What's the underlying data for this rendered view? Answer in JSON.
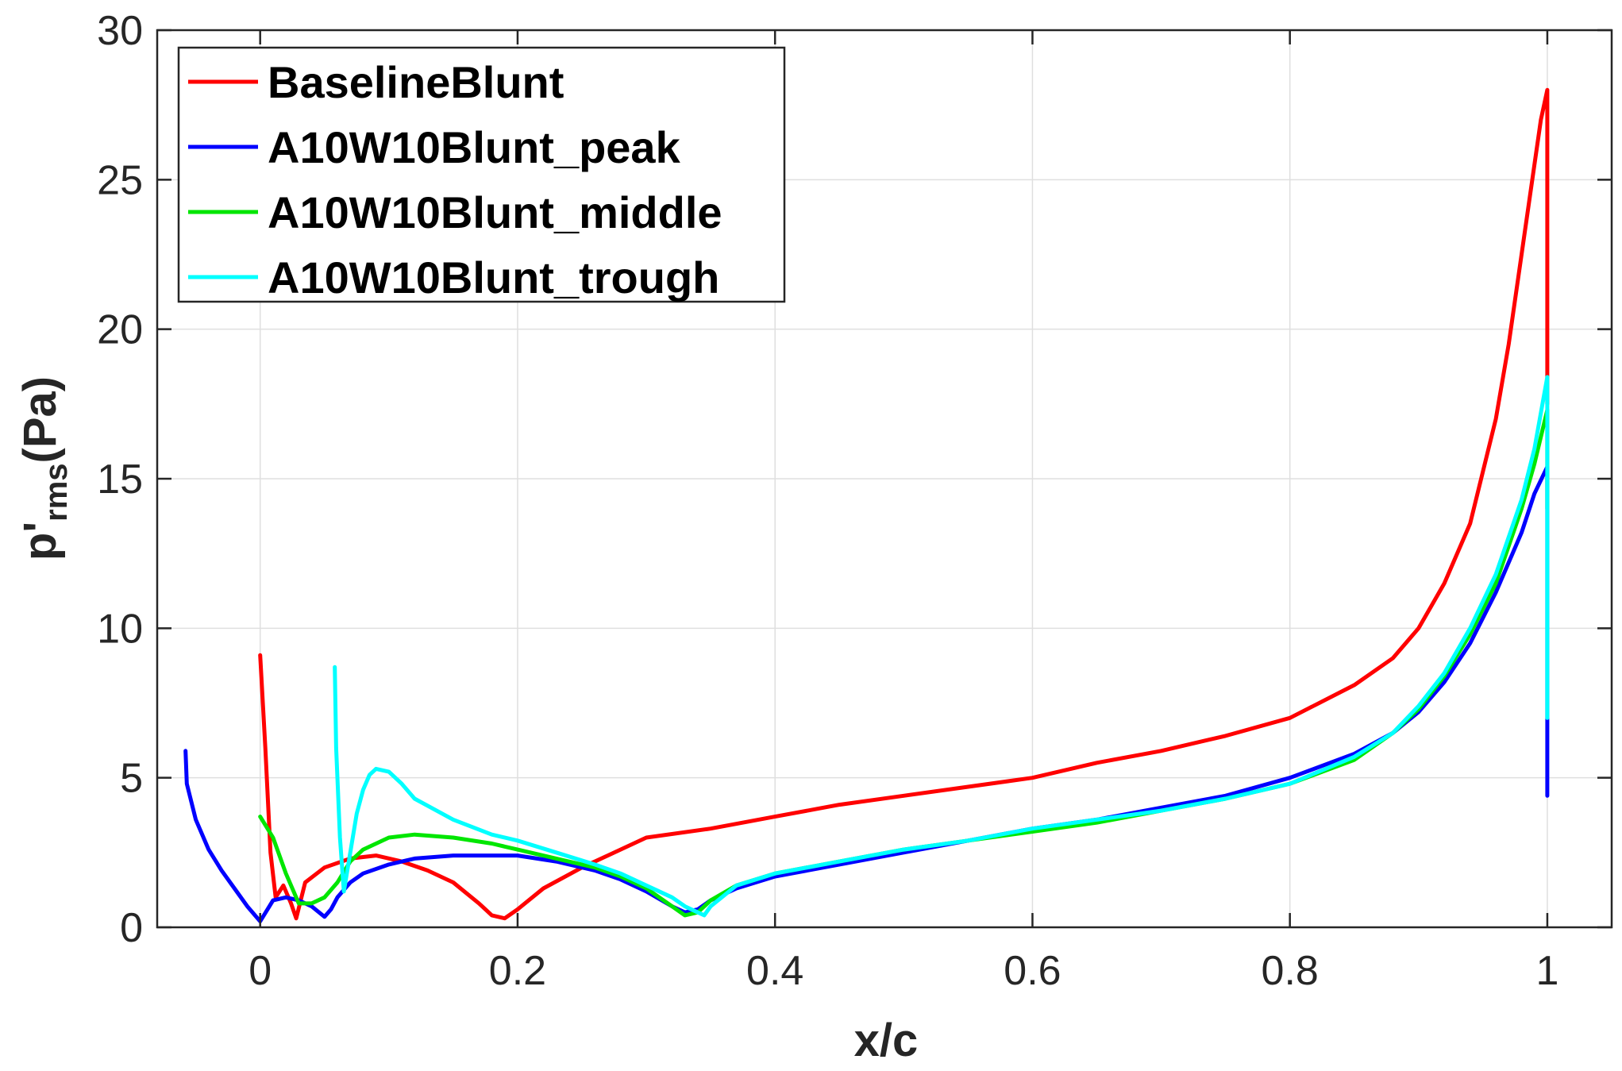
{
  "chart_data": {
    "type": "line",
    "title": "",
    "xlabel": "x/c",
    "ylabel": {
      "base": "p'",
      "subscript": "rms",
      "suffix": "(Pa)"
    },
    "xlim": [
      -0.08,
      1.05
    ],
    "ylim": [
      0,
      30
    ],
    "xticks": [
      0,
      0.2,
      0.4,
      0.6,
      0.8,
      1
    ],
    "xtick_labels": [
      "0",
      "0.2",
      "0.4",
      "0.6",
      "0.8",
      "1"
    ],
    "yticks": [
      0,
      5,
      10,
      15,
      20,
      25,
      30
    ],
    "ytick_labels": [
      "0",
      "5",
      "10",
      "15",
      "20",
      "25",
      "30"
    ],
    "grid": true,
    "legend_position": "top-left",
    "series": [
      {
        "name": "BaselineBlunt",
        "color": "#ff0000",
        "x": [
          0,
          0.004,
          0.008,
          0.012,
          0.018,
          0.024,
          0.028,
          0.035,
          0.05,
          0.07,
          0.09,
          0.11,
          0.13,
          0.15,
          0.17,
          0.18,
          0.19,
          0.2,
          0.22,
          0.25,
          0.28,
          0.3,
          0.35,
          0.4,
          0.45,
          0.5,
          0.55,
          0.6,
          0.65,
          0.7,
          0.75,
          0.8,
          0.85,
          0.88,
          0.9,
          0.92,
          0.94,
          0.96,
          0.97,
          0.98,
          0.99,
          0.995,
          1.0,
          1.0,
          1.0
        ],
        "y": [
          9.1,
          6.0,
          2.5,
          1.0,
          1.4,
          0.8,
          0.3,
          1.5,
          2.0,
          2.3,
          2.4,
          2.2,
          1.9,
          1.5,
          0.8,
          0.4,
          0.3,
          0.6,
          1.3,
          2.0,
          2.6,
          3.0,
          3.3,
          3.7,
          4.1,
          4.4,
          4.7,
          5.0,
          5.5,
          5.9,
          6.4,
          7.0,
          8.1,
          9.0,
          10.0,
          11.5,
          13.5,
          17.0,
          19.5,
          22.5,
          25.5,
          27.0,
          28.0,
          18.0,
          17.5
        ]
      },
      {
        "name": "A10W10Blunt_peak",
        "color": "#0000ff",
        "x": [
          -0.058,
          -0.057,
          -0.05,
          -0.04,
          -0.03,
          -0.02,
          -0.01,
          0.0,
          0.01,
          0.02,
          0.03,
          0.04,
          0.05,
          0.055,
          0.06,
          0.07,
          0.08,
          0.1,
          0.12,
          0.15,
          0.18,
          0.2,
          0.23,
          0.26,
          0.28,
          0.3,
          0.32,
          0.33,
          0.34,
          0.35,
          0.37,
          0.4,
          0.45,
          0.5,
          0.55,
          0.6,
          0.65,
          0.7,
          0.75,
          0.8,
          0.85,
          0.88,
          0.9,
          0.92,
          0.94,
          0.96,
          0.98,
          0.99,
          1.0,
          1.0,
          1.0
        ],
        "y": [
          5.9,
          4.8,
          3.6,
          2.6,
          1.9,
          1.3,
          0.7,
          0.2,
          0.9,
          1.0,
          0.9,
          0.7,
          0.35,
          0.6,
          1.0,
          1.5,
          1.8,
          2.1,
          2.3,
          2.4,
          2.4,
          2.4,
          2.2,
          1.9,
          1.6,
          1.2,
          0.7,
          0.5,
          0.6,
          0.9,
          1.3,
          1.7,
          2.1,
          2.5,
          2.9,
          3.3,
          3.6,
          4.0,
          4.4,
          5.0,
          5.8,
          6.5,
          7.2,
          8.2,
          9.5,
          11.2,
          13.2,
          14.5,
          15.4,
          7.0,
          4.4
        ]
      },
      {
        "name": "A10W10Blunt_middle",
        "color": "#00e600",
        "x": [
          0,
          0.01,
          0.02,
          0.03,
          0.04,
          0.05,
          0.06,
          0.07,
          0.08,
          0.1,
          0.12,
          0.15,
          0.18,
          0.2,
          0.23,
          0.26,
          0.28,
          0.3,
          0.32,
          0.33,
          0.34,
          0.35,
          0.37,
          0.4,
          0.45,
          0.5,
          0.55,
          0.6,
          0.65,
          0.7,
          0.75,
          0.8,
          0.85,
          0.88,
          0.9,
          0.92,
          0.94,
          0.96,
          0.98,
          0.99,
          1.0,
          1.0
        ],
        "y": [
          3.7,
          3.0,
          1.8,
          0.8,
          0.8,
          1.0,
          1.5,
          2.2,
          2.6,
          3.0,
          3.1,
          3.0,
          2.8,
          2.6,
          2.3,
          2.0,
          1.7,
          1.3,
          0.7,
          0.4,
          0.5,
          0.9,
          1.4,
          1.8,
          2.2,
          2.6,
          2.9,
          3.2,
          3.5,
          3.9,
          4.3,
          4.8,
          5.6,
          6.5,
          7.3,
          8.4,
          9.8,
          11.5,
          14.0,
          15.5,
          17.3,
          14.0
        ]
      },
      {
        "name": "A10W10Blunt_trough",
        "color": "#00ffff",
        "x": [
          0.058,
          0.059,
          0.062,
          0.065,
          0.07,
          0.075,
          0.08,
          0.085,
          0.09,
          0.1,
          0.11,
          0.12,
          0.15,
          0.18,
          0.2,
          0.23,
          0.26,
          0.28,
          0.3,
          0.32,
          0.33,
          0.34,
          0.345,
          0.35,
          0.37,
          0.4,
          0.45,
          0.5,
          0.55,
          0.6,
          0.65,
          0.7,
          0.75,
          0.8,
          0.85,
          0.88,
          0.9,
          0.92,
          0.94,
          0.96,
          0.98,
          0.99,
          1.0,
          1.0
        ],
        "y": [
          8.7,
          6.0,
          3.0,
          1.2,
          2.5,
          3.8,
          4.6,
          5.1,
          5.3,
          5.2,
          4.8,
          4.3,
          3.6,
          3.1,
          2.9,
          2.5,
          2.1,
          1.8,
          1.4,
          1.0,
          0.7,
          0.5,
          0.4,
          0.7,
          1.4,
          1.8,
          2.2,
          2.6,
          2.9,
          3.3,
          3.6,
          3.9,
          4.3,
          4.8,
          5.7,
          6.5,
          7.4,
          8.5,
          10.0,
          11.8,
          14.3,
          16.0,
          18.4,
          7.0
        ]
      }
    ]
  }
}
